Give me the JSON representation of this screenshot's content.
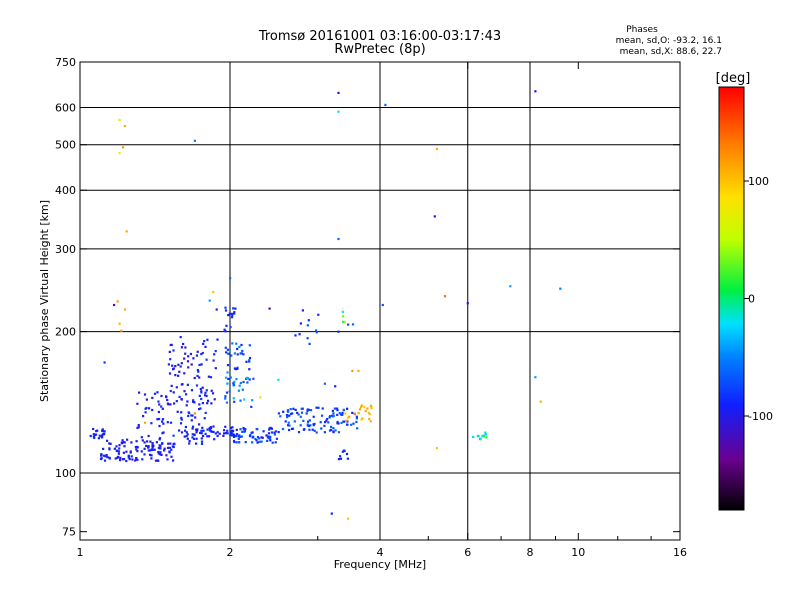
{
  "chart_data": {
    "type": "scatter",
    "title": "Tromsø 20161001 03:16:00-03:17:43",
    "subtitle": "RwPretec (8p)",
    "stats": {
      "heading": "Phases",
      "line_o": "mean, sd,O: -93.2, 16.1",
      "line_x": "mean, sd,X:  88.6, 22.7"
    },
    "xlabel": "Frequency [MHz]",
    "ylabel": "Stationary phase Virtual Height [km]",
    "x_scale": "log",
    "y_scale": "log",
    "xlim": [
      1,
      16
    ],
    "ylim": [
      72,
      750
    ],
    "x_ticks": [
      {
        "value": 1,
        "label": "1"
      },
      {
        "value": 2,
        "label": "2"
      },
      {
        "value": 4,
        "label": "4"
      },
      {
        "value": 6,
        "label": "6"
      },
      {
        "value": 8,
        "label": "8"
      },
      {
        "value": 10,
        "label": "10"
      },
      {
        "value": 16,
        "label": "16"
      }
    ],
    "y_ticks": [
      {
        "value": 75,
        "label": "75"
      },
      {
        "value": 100,
        "label": "100"
      },
      {
        "value": 200,
        "label": "200"
      },
      {
        "value": 300,
        "label": "300"
      },
      {
        "value": 400,
        "label": "400"
      },
      {
        "value": 500,
        "label": "500"
      },
      {
        "value": 600,
        "label": "600"
      },
      {
        "value": 750,
        "label": "750"
      }
    ],
    "grid_x": [
      2,
      4,
      6,
      8
    ],
    "grid_y": [
      100,
      200,
      300,
      400,
      500,
      600
    ],
    "colorbar": {
      "label": "[deg]",
      "range": [
        -180,
        180
      ],
      "ticks": [
        {
          "value": 100,
          "label": "100"
        },
        {
          "value": 0,
          "label": "0"
        },
        {
          "value": -100,
          "label": "-100"
        }
      ]
    },
    "clusters": [
      {
        "x": [
          1.05,
          1.12
        ],
        "y": [
          118,
          125
        ],
        "phase": [
          -95,
          -85
        ],
        "n": 22
      },
      {
        "x": [
          1.1,
          1.55
        ],
        "y": [
          106,
          118
        ],
        "phase": [
          -105,
          -85
        ],
        "n": 120
      },
      {
        "x": [
          1.3,
          1.8
        ],
        "y": [
          115,
          150
        ],
        "phase": [
          -105,
          -80
        ],
        "n": 90
      },
      {
        "x": [
          1.5,
          1.9
        ],
        "y": [
          140,
          195
        ],
        "phase": [
          -110,
          -80
        ],
        "n": 80
      },
      {
        "x": [
          1.6,
          2.05
        ],
        "y": [
          118,
          126
        ],
        "phase": [
          -100,
          -80
        ],
        "n": 50
      },
      {
        "x": [
          2.0,
          2.5
        ],
        "y": [
          116,
          125
        ],
        "phase": [
          -100,
          -60
        ],
        "n": 70
      },
      {
        "x": [
          2.5,
          3.6
        ],
        "y": [
          122,
          138
        ],
        "phase": [
          -95,
          -55
        ],
        "n": 110
      },
      {
        "x": [
          1.95,
          2.2
        ],
        "y": [
          155,
          190
        ],
        "phase": [
          -100,
          -40
        ],
        "n": 40
      },
      {
        "x": [
          1.95,
          2.25
        ],
        "y": [
          138,
          160
        ],
        "phase": [
          -80,
          -20
        ],
        "n": 20
      },
      {
        "x": [
          3.4,
          3.9
        ],
        "y": [
          128,
          140
        ],
        "phase": [
          85,
          120
        ],
        "n": 22
      },
      {
        "x": [
          6.1,
          6.6
        ],
        "y": [
          118,
          122
        ],
        "phase": [
          -40,
          60
        ],
        "n": 12
      },
      {
        "x": [
          3.3,
          3.45
        ],
        "y": [
          106,
          112
        ],
        "phase": [
          -95,
          -80
        ],
        "n": 8
      },
      {
        "x": [
          1.95,
          2.05
        ],
        "y": [
          198,
          230
        ],
        "phase": [
          -95,
          -80
        ],
        "n": 14
      },
      {
        "x": [
          2.6,
          3.1
        ],
        "y": [
          188,
          222
        ],
        "phase": [
          -95,
          -55
        ],
        "n": 10
      },
      {
        "x": [
          3.35,
          3.55
        ],
        "y": [
          205,
          225
        ],
        "phase": [
          -90,
          60
        ],
        "n": 6
      }
    ],
    "points": [
      [
        1.2,
        565,
        60
      ],
      [
        1.23,
        548,
        110
      ],
      [
        1.2,
        480,
        80
      ],
      [
        1.22,
        494,
        120
      ],
      [
        1.24,
        327,
        110
      ],
      [
        1.19,
        232,
        115
      ],
      [
        1.17,
        228,
        -130
      ],
      [
        1.2,
        208,
        105
      ],
      [
        1.23,
        223,
        110
      ],
      [
        1.21,
        201,
        112
      ],
      [
        1.12,
        172,
        -80
      ],
      [
        1.7,
        510,
        -50
      ],
      [
        1.85,
        243,
        100
      ],
      [
        1.82,
        233,
        -40
      ],
      [
        2.0,
        260,
        -60
      ],
      [
        1.88,
        223,
        -90
      ],
      [
        2.05,
        224,
        -90
      ],
      [
        2.4,
        224,
        -130
      ],
      [
        2.8,
        222,
        -90
      ],
      [
        3.3,
        645,
        -100
      ],
      [
        3.3,
        588,
        -20
      ],
      [
        3.3,
        315,
        -60
      ],
      [
        3.3,
        200,
        -100
      ],
      [
        3.2,
        82,
        -90
      ],
      [
        3.45,
        80,
        100
      ],
      [
        3.52,
        165,
        120
      ],
      [
        3.62,
        165,
        110
      ],
      [
        3.1,
        155,
        -60
      ],
      [
        3.25,
        153,
        -90
      ],
      [
        4.1,
        608,
        -60
      ],
      [
        4.05,
        228,
        -70
      ],
      [
        5.2,
        490,
        110
      ],
      [
        5.15,
        352,
        -100
      ],
      [
        5.4,
        238,
        140
      ],
      [
        5.2,
        113,
        100
      ],
      [
        6.0,
        230,
        -100
      ],
      [
        7.3,
        250,
        -40
      ],
      [
        8.2,
        650,
        -100
      ],
      [
        8.2,
        160,
        -40
      ],
      [
        8.4,
        142,
        110
      ],
      [
        9.2,
        247,
        -50
      ],
      [
        2.3,
        145,
        80
      ],
      [
        2.5,
        158,
        -20
      ],
      [
        1.35,
        128,
        115
      ],
      [
        1.7,
        134,
        120
      ]
    ]
  }
}
